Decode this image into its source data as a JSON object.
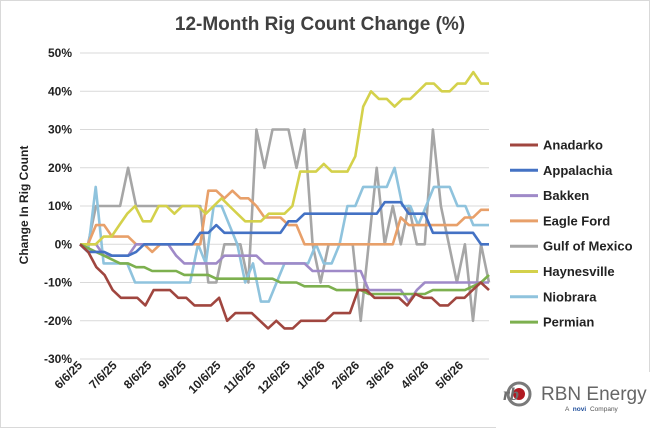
{
  "chart_data": {
    "type": "line",
    "title": "12-Month Rig Count Change (%)",
    "ylabel": "Change In Rig Count",
    "xlabel": "",
    "ylim": [
      -30,
      50
    ],
    "y_ticks": [
      "50%",
      "40%",
      "30%",
      "20%",
      "10%",
      "0%",
      "-10%",
      "-20%",
      "-30%"
    ],
    "x_tick_labels": [
      "6/6/25",
      "7/6/25",
      "8/6/25",
      "9/6/25",
      "10/6/25",
      "11/6/25",
      "12/6/25",
      "1/6/26",
      "2/6/26",
      "3/6/26",
      "4/6/26",
      "5/6/26"
    ],
    "grid": true,
    "legend_position": "right",
    "series": [
      {
        "name": "Anadarko",
        "color": "#A0463F",
        "values": [
          0,
          -2,
          -6,
          -8,
          -12,
          -14,
          -14,
          -14,
          -16,
          -12,
          -12,
          -12,
          -14,
          -14,
          -16,
          -16,
          -16,
          -14,
          -20,
          -18,
          -18,
          -18,
          -20,
          -22,
          -20,
          -22,
          -22,
          -20,
          -20,
          -20,
          -20,
          -18,
          -18,
          -18,
          -12,
          -12,
          -14,
          -14,
          -14,
          -14,
          -16,
          -13,
          -14,
          -14,
          -16,
          -16,
          -14,
          -14,
          -12,
          -10,
          -12
        ]
      },
      {
        "name": "Appalachia",
        "color": "#4472C4",
        "values": [
          0,
          -2,
          -2,
          -2,
          -3,
          -3,
          -3,
          -2,
          0,
          0,
          0,
          0,
          0,
          0,
          0,
          3,
          3,
          5,
          3,
          3,
          3,
          3,
          3,
          3,
          3,
          3,
          6,
          6,
          8,
          8,
          8,
          8,
          8,
          8,
          8,
          8,
          8,
          8,
          11,
          11,
          11,
          8,
          8,
          8,
          3,
          3,
          3,
          3,
          3,
          3,
          0,
          0
        ]
      },
      {
        "name": "Bakken",
        "color": "#9F8AC8",
        "values": [
          0,
          0,
          0,
          -3,
          -3,
          -3,
          -3,
          0,
          0,
          0,
          0,
          0,
          -3,
          -5,
          -5,
          -5,
          -5,
          -5,
          -3,
          -3,
          -3,
          -3,
          -3,
          -5,
          -5,
          -5,
          -5,
          -5,
          -5,
          -7,
          -7,
          -7,
          -7,
          -7,
          -7,
          -7,
          -12,
          -12,
          -12,
          -12,
          -12,
          -15,
          -12,
          -10,
          -10,
          -10,
          -10,
          -10,
          -10,
          -10,
          -10,
          -10
        ]
      },
      {
        "name": "Eagle Ford",
        "color": "#E8A06A",
        "values": [
          0,
          0,
          5,
          5,
          2,
          2,
          2,
          0,
          0,
          -2,
          0,
          0,
          0,
          0,
          0,
          0,
          14,
          14,
          12,
          14,
          12,
          12,
          10,
          7,
          7,
          7,
          5,
          5,
          0,
          0,
          0,
          0,
          0,
          0,
          0,
          0,
          0,
          0,
          0,
          0,
          7,
          5,
          5,
          5,
          5,
          5,
          5,
          5,
          7,
          7,
          9,
          9
        ]
      },
      {
        "name": "Gulf of Mexico",
        "color": "#A6A6A6",
        "values": [
          0,
          0,
          10,
          10,
          10,
          10,
          20,
          10,
          10,
          10,
          10,
          10,
          10,
          10,
          10,
          10,
          -10,
          -10,
          0,
          0,
          0,
          -10,
          30,
          20,
          30,
          30,
          30,
          20,
          30,
          0,
          -10,
          0,
          0,
          0,
          0,
          -20,
          0,
          20,
          0,
          10,
          0,
          10,
          0,
          0,
          30,
          10,
          0,
          -10,
          0,
          -20,
          0,
          -10
        ]
      },
      {
        "name": "Haynesville",
        "color": "#D4D14B",
        "values": [
          0,
          0,
          0,
          2,
          2,
          5,
          8,
          10,
          6,
          6,
          10,
          10,
          8,
          10,
          10,
          10,
          8,
          10,
          12,
          10,
          8,
          6,
          6,
          6,
          8,
          8,
          8,
          10,
          19,
          19,
          19,
          21,
          19,
          19,
          19,
          23,
          36,
          40,
          38,
          38,
          36,
          38,
          38,
          40,
          42,
          42,
          40,
          40,
          42,
          42,
          45,
          42,
          42
        ]
      },
      {
        "name": "Niobrara",
        "color": "#8FC3DD",
        "values": [
          0,
          -2,
          15,
          -5,
          -5,
          -5,
          -5,
          -10,
          -10,
          -10,
          -10,
          -10,
          -10,
          -10,
          -10,
          0,
          -5,
          10,
          10,
          5,
          0,
          -10,
          -5,
          -15,
          -15,
          -10,
          -5,
          -5,
          -5,
          -5,
          0,
          -5,
          -5,
          0,
          10,
          10,
          15,
          15,
          15,
          15,
          20,
          10,
          10,
          5,
          10,
          15,
          15,
          15,
          10,
          10,
          5,
          5,
          5
        ]
      },
      {
        "name": "Permian",
        "color": "#7DB04F",
        "values": [
          0,
          -1,
          -2,
          -3,
          -4,
          -5,
          -5,
          -6,
          -6,
          -7,
          -7,
          -7,
          -7,
          -8,
          -8,
          -8,
          -8,
          -9,
          -9,
          -9,
          -9,
          -9,
          -9,
          -9,
          -9,
          -10,
          -10,
          -10,
          -11,
          -11,
          -11,
          -11,
          -12,
          -12,
          -12,
          -12,
          -13,
          -13,
          -13,
          -13,
          -13,
          -13,
          -13,
          -13,
          -12,
          -12,
          -12,
          -12,
          -12,
          -11,
          -10,
          -8
        ]
      }
    ]
  },
  "branding": {
    "logo_monogram": "rb",
    "name": "RBN Energy",
    "tagline_prefix": "A",
    "tagline_brand": "novi",
    "tagline_suffix": "Company"
  }
}
